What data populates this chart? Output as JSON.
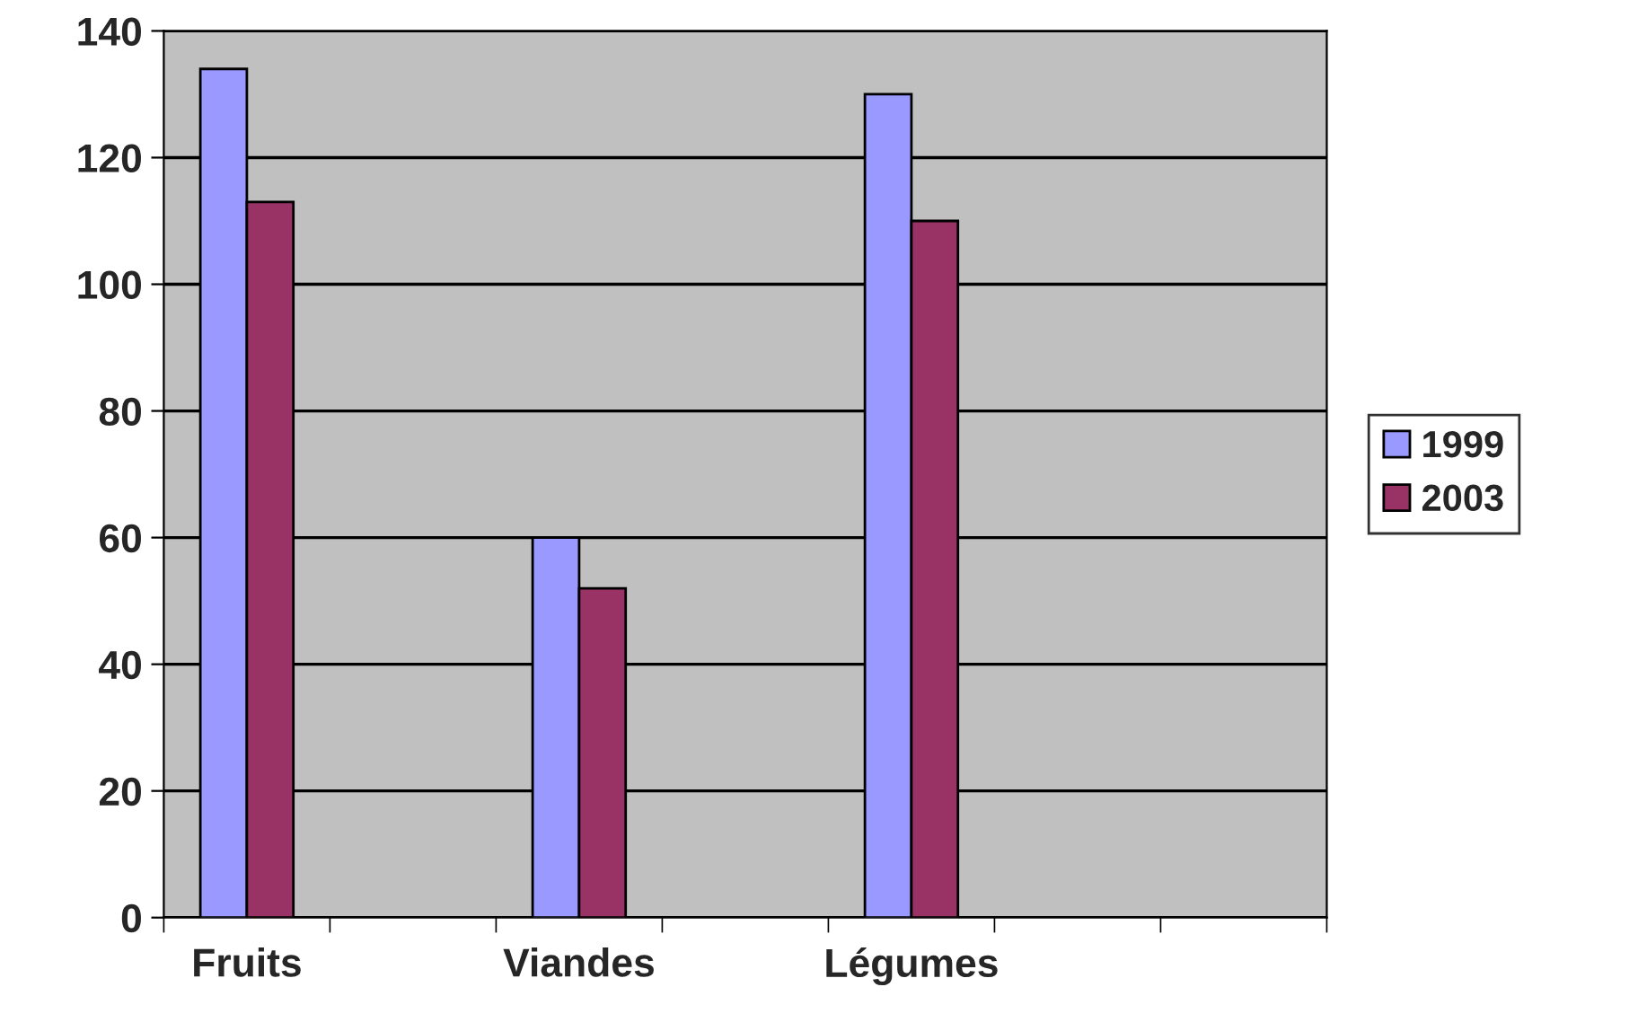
{
  "chart_data": {
    "type": "bar",
    "categories": [
      "Fruits",
      null,
      "Viandes",
      null,
      "Légumes",
      null,
      null
    ],
    "series": [
      {
        "name": "1999",
        "color": "#9999ff",
        "values": [
          134,
          null,
          60,
          null,
          130,
          null,
          null
        ]
      },
      {
        "name": "2003",
        "color": "#993366",
        "values": [
          113,
          null,
          52,
          null,
          110,
          null,
          null
        ]
      }
    ],
    "ylim": [
      0,
      140
    ],
    "yticks": [
      0,
      20,
      40,
      60,
      80,
      100,
      120,
      140
    ],
    "grid": "y",
    "legend": "right"
  }
}
